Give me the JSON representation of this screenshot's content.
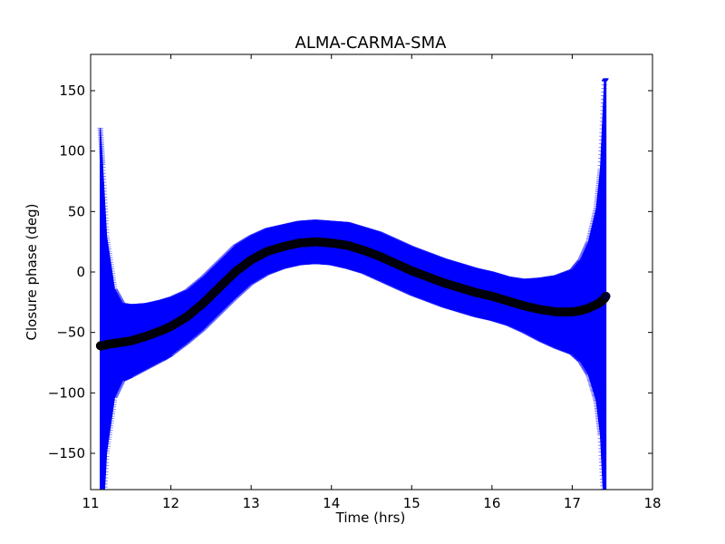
{
  "chart_data": {
    "type": "scatter",
    "title": "ALMA-CARMA-SMA",
    "xlabel": "Time (hrs)",
    "ylabel": "Closure phase (deg)",
    "xlim": [
      11,
      18
    ],
    "ylim": [
      -180,
      180
    ],
    "xticks": [
      11,
      12,
      13,
      14,
      15,
      16,
      17,
      18
    ],
    "xtick_labels": [
      "11",
      "12",
      "13",
      "14",
      "15",
      "16",
      "17",
      "18"
    ],
    "yticks": [
      -150,
      -100,
      -50,
      0,
      50,
      100,
      150
    ],
    "ytick_labels": [
      "−150",
      "−100",
      "−50",
      "0",
      "50",
      "100",
      "150"
    ],
    "grid": false,
    "series": [
      {
        "style": "errorbar",
        "color": "#0000ff",
        "marker_color": "#000033",
        "x": [
          11.12,
          11.15,
          11.2,
          11.3,
          11.4,
          11.5,
          11.7,
          11.9,
          12.0,
          12.2,
          12.4,
          12.6,
          12.8,
          13.0,
          13.2,
          13.4,
          13.6,
          13.8,
          14.0,
          14.2,
          14.4,
          14.6,
          14.8,
          15.0,
          15.2,
          15.4,
          15.6,
          15.8,
          16.0,
          16.2,
          16.4,
          16.6,
          16.8,
          17.0,
          17.1,
          17.2,
          17.3,
          17.35,
          17.4,
          17.42
        ],
        "y": [
          -61,
          -61,
          -60,
          -59,
          -58,
          -57,
          -53,
          -48,
          -45,
          -37,
          -26,
          -13,
          0,
          10,
          17,
          21,
          24,
          25,
          24,
          22,
          18,
          13,
          7,
          1,
          -4,
          -9,
          -13,
          -17,
          -20,
          -24,
          -28,
          -31,
          -33,
          -33,
          -32,
          -30,
          -27,
          -25,
          -22,
          -20
        ],
        "err": [
          180,
          150,
          90,
          45,
          32,
          30,
          27,
          25,
          24,
          22,
          22,
          22,
          22,
          20,
          19,
          18,
          18,
          18,
          18,
          19,
          19,
          20,
          20,
          20,
          20,
          20,
          20,
          20,
          20,
          20,
          22,
          26,
          30,
          35,
          42,
          55,
          80,
          110,
          180,
          180
        ]
      }
    ]
  }
}
